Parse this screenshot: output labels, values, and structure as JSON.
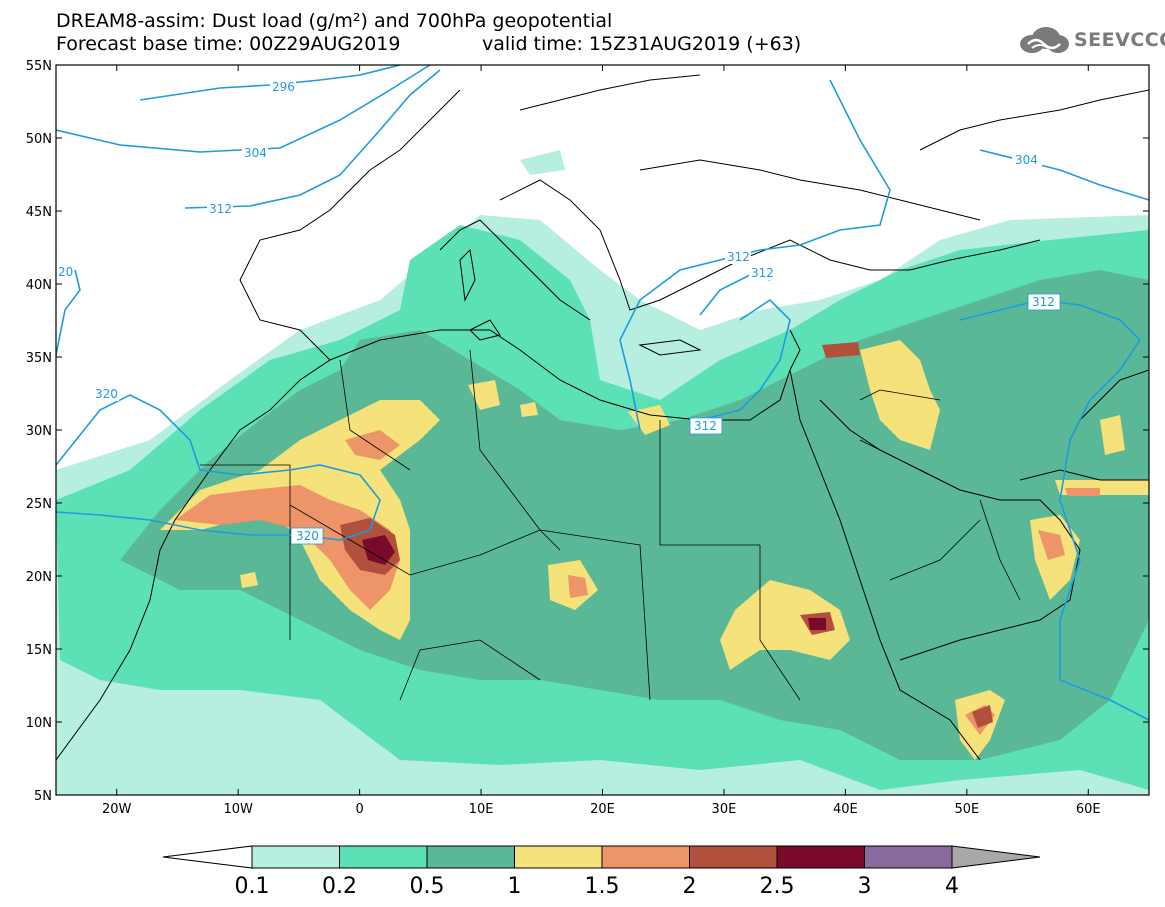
{
  "title": {
    "line1": "DREAM8-assim: Dust load (g/m²) and 700hPa geopotential",
    "line2": "Forecast base time: 00Z29AUG2019",
    "valid": "valid time: 15Z31AUG2019 (+63)"
  },
  "logo": {
    "text": "SEEVCCC",
    "icon": "cloud-icon"
  },
  "map": {
    "lat_ticks": [
      "55N",
      "50N",
      "45N",
      "40N",
      "35N",
      "30N",
      "25N",
      "20N",
      "15N",
      "10N",
      "5N"
    ],
    "lon_ticks": [
      "20W",
      "10W",
      "0",
      "10E",
      "20E",
      "30E",
      "40E",
      "50E",
      "60E"
    ],
    "lat_range": [
      5,
      55
    ],
    "lon_range": [
      -25,
      65
    ],
    "isohypse_labels": [
      "296",
      "304",
      "312",
      "312",
      "320",
      "320",
      "312",
      "304",
      "312",
      "20",
      "312"
    ]
  },
  "colorbar": {
    "labels": [
      "0.1",
      "0.2",
      "0.5",
      "1",
      "1.5",
      "2",
      "2.5",
      "3",
      "4"
    ],
    "colors": [
      "#b6eee0",
      "#5ce0b6",
      "#5ab896",
      "#f5e27a",
      "#ed9468",
      "#b1503c",
      "#7a0a2a",
      "#8a6a9e",
      "#a8a8a8"
    ]
  },
  "colors": {
    "c1": "#b6eee0",
    "c2": "#5ce0b6",
    "c3": "#5ab896",
    "c4": "#f5e27a",
    "c5": "#ed9468",
    "c6": "#b1503c",
    "c7": "#7a0a2a",
    "contour": "#1e9be0"
  }
}
